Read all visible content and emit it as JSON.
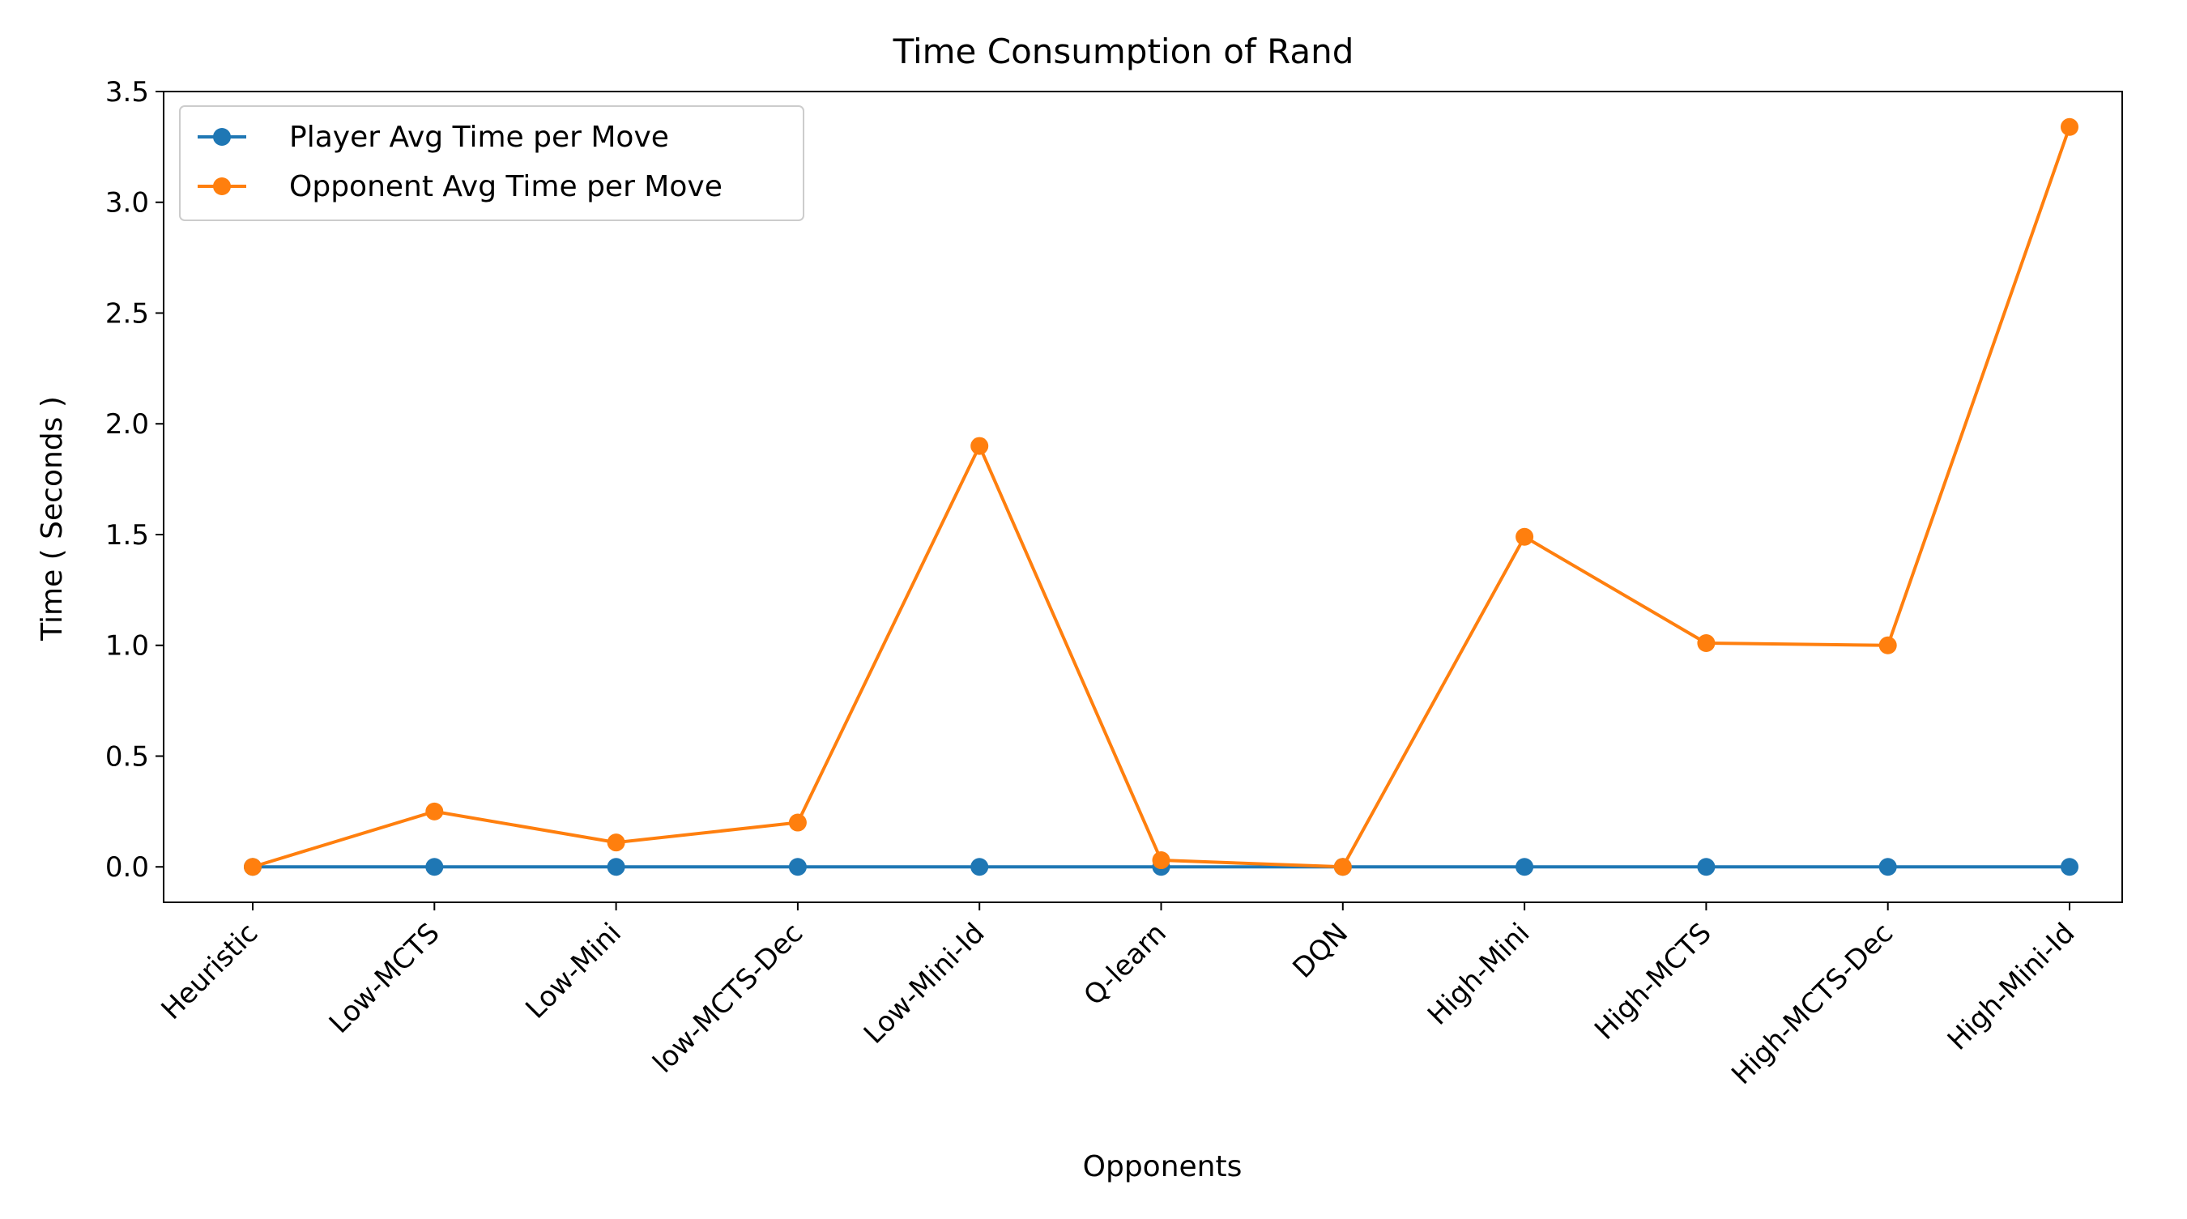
{
  "chart_data": {
    "type": "line",
    "title": "Time Consumption of Rand",
    "xlabel": "Opponents",
    "ylabel": "Time ( Seconds )",
    "categories": [
      "Heuristic",
      "Low-MCTS",
      "Low-Mini",
      "low-MCTS-Dec",
      "Low-Mini-Id",
      "Q-learn",
      "DQN",
      "High-Mini",
      "High-MCTS",
      "High-MCTS-Dec",
      "High-Mini-Id"
    ],
    "ylim": [
      -0.16,
      3.5
    ],
    "yticks": [
      0.0,
      0.5,
      1.0,
      1.5,
      2.0,
      2.5,
      3.0,
      3.5
    ],
    "ytick_labels": [
      "0.0",
      "0.5",
      "1.0",
      "1.5",
      "2.0",
      "2.5",
      "3.0",
      "3.5"
    ],
    "grid": false,
    "legend_position": "top-left",
    "series": [
      {
        "name": "Player Avg Time per Move",
        "color": "#1f77b4",
        "marker": "circle",
        "values": [
          0.0,
          0.0,
          0.0,
          0.0,
          0.0,
          0.0,
          0.0,
          0.0,
          0.0,
          0.0,
          0.0
        ]
      },
      {
        "name": "Opponent Avg Time per Move",
        "color": "#ff7f0e",
        "marker": "circle",
        "values": [
          0.0,
          0.25,
          0.11,
          0.2,
          1.9,
          0.03,
          0.0,
          1.49,
          1.01,
          1.0,
          3.34
        ]
      }
    ]
  }
}
